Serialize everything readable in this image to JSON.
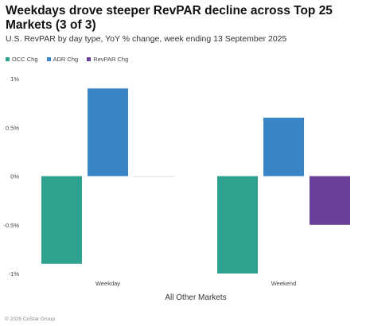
{
  "title": "Weekdays drove steeper RevPAR decline across Top 25 Markets (3 of 3)",
  "subtitle": "U.S. RevPAR by day type, YoY % change, week ending 13 September 2025",
  "footer": "© 2025 CoStar Group",
  "colors": {
    "occ": "#2ea18f",
    "adr": "#3a85c8",
    "revpar": "#6a3f9c"
  },
  "chart_data": {
    "type": "bar",
    "categories": [
      "Weekday",
      "Weekend"
    ],
    "xlabel": "All Other Markets",
    "ylabel": "",
    "ylim": [
      -1,
      1
    ],
    "yticks": [
      1,
      0.5,
      0,
      -0.5,
      -1
    ],
    "ytick_labels": [
      "1%",
      "0.5%",
      "0%",
      "-0.5%",
      "-1%"
    ],
    "legend_position": "top-left",
    "grid": false,
    "series": [
      {
        "name": "OCC Chg",
        "color": "#2ea18f",
        "values": [
          -0.9,
          -1.0
        ]
      },
      {
        "name": "ADR Chg",
        "color": "#3a85c8",
        "values": [
          0.9,
          0.6
        ]
      },
      {
        "name": "RevPAR Chg",
        "color": "#6a3f9c",
        "values": [
          0.0,
          -0.5
        ]
      }
    ]
  }
}
